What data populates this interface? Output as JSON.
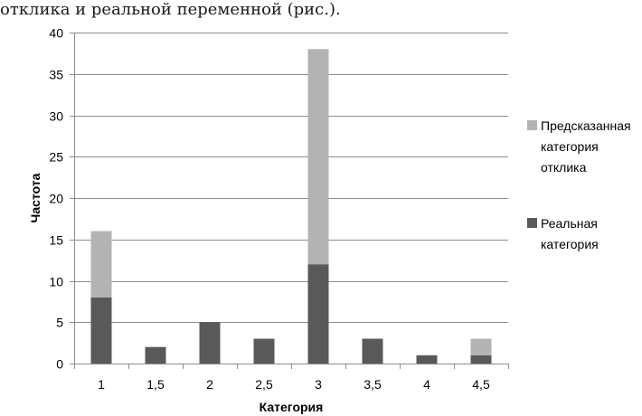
{
  "caption": "отклика и реальной переменной (рис.).",
  "chart_data": {
    "type": "bar",
    "stacked": true,
    "categories": [
      "1",
      "1,5",
      "2",
      "2,5",
      "3",
      "3,5",
      "4",
      "4,5"
    ],
    "series": [
      {
        "name": "Реальная категория",
        "color": "#595959",
        "values": [
          8,
          2,
          5,
          3,
          12,
          3,
          1,
          1
        ]
      },
      {
        "name": "Предсказанная категория отклика",
        "color": "#b3b3b3",
        "values": [
          8,
          0,
          0,
          0,
          26,
          0,
          0,
          2
        ]
      }
    ],
    "legend_order": [
      1,
      0
    ],
    "legend_lines": [
      [
        "Предсказанная",
        "категория",
        "отклика"
      ],
      [
        "Реальная",
        "категория"
      ]
    ],
    "xlabel": "Категория",
    "ylabel": "Частота",
    "ylim": [
      0,
      40
    ],
    "yticks": [
      0,
      5,
      10,
      15,
      20,
      25,
      30,
      35,
      40
    ],
    "grid": true,
    "legend_position": "right"
  }
}
